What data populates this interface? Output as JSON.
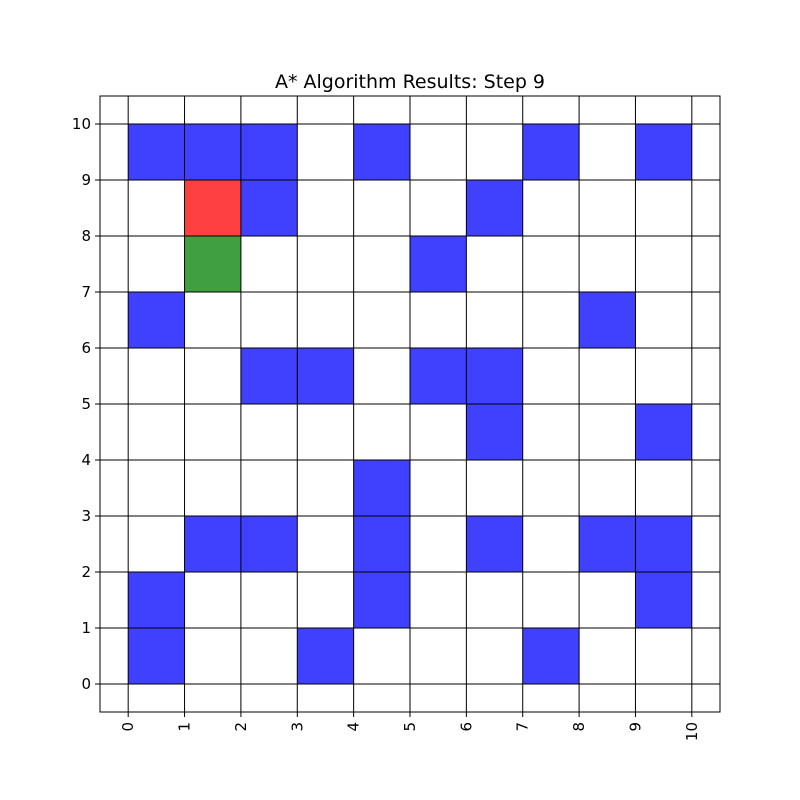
{
  "chart_data": {
    "type": "heatmap",
    "title": "A* Algorithm Results: Step 9",
    "xlim": [
      -0.5,
      10.5
    ],
    "ylim": [
      -0.5,
      10.5
    ],
    "x_ticks": [
      "0",
      "1",
      "2",
      "3",
      "4",
      "5",
      "6",
      "7",
      "8",
      "9",
      "10"
    ],
    "y_ticks": [
      "0",
      "1",
      "2",
      "3",
      "4",
      "5",
      "6",
      "7",
      "8",
      "9",
      "10"
    ],
    "grid": true,
    "cell_size": 1,
    "colors": {
      "obstacle": "#4040ff",
      "current": "#ff4040",
      "start": "#40a040",
      "grid": "#000000"
    },
    "cells": [
      {
        "x": 0,
        "y": 9,
        "state": "obstacle"
      },
      {
        "x": 1,
        "y": 9,
        "state": "obstacle"
      },
      {
        "x": 2,
        "y": 9,
        "state": "obstacle"
      },
      {
        "x": 4,
        "y": 9,
        "state": "obstacle"
      },
      {
        "x": 7,
        "y": 9,
        "state": "obstacle"
      },
      {
        "x": 9,
        "y": 9,
        "state": "obstacle"
      },
      {
        "x": 1,
        "y": 8,
        "state": "current"
      },
      {
        "x": 2,
        "y": 8,
        "state": "obstacle"
      },
      {
        "x": 6,
        "y": 8,
        "state": "obstacle"
      },
      {
        "x": 1,
        "y": 7,
        "state": "start"
      },
      {
        "x": 5,
        "y": 7,
        "state": "obstacle"
      },
      {
        "x": 0,
        "y": 6,
        "state": "obstacle"
      },
      {
        "x": 8,
        "y": 6,
        "state": "obstacle"
      },
      {
        "x": 2,
        "y": 5,
        "state": "obstacle"
      },
      {
        "x": 3,
        "y": 5,
        "state": "obstacle"
      },
      {
        "x": 5,
        "y": 5,
        "state": "obstacle"
      },
      {
        "x": 6,
        "y": 5,
        "state": "obstacle"
      },
      {
        "x": 6,
        "y": 4,
        "state": "obstacle"
      },
      {
        "x": 9,
        "y": 4,
        "state": "obstacle"
      },
      {
        "x": 4,
        "y": 3,
        "state": "obstacle"
      },
      {
        "x": 1,
        "y": 2,
        "state": "obstacle"
      },
      {
        "x": 2,
        "y": 2,
        "state": "obstacle"
      },
      {
        "x": 4,
        "y": 2,
        "state": "obstacle"
      },
      {
        "x": 6,
        "y": 2,
        "state": "obstacle"
      },
      {
        "x": 8,
        "y": 2,
        "state": "obstacle"
      },
      {
        "x": 9,
        "y": 2,
        "state": "obstacle"
      },
      {
        "x": 0,
        "y": 1,
        "state": "obstacle"
      },
      {
        "x": 4,
        "y": 1,
        "state": "obstacle"
      },
      {
        "x": 9,
        "y": 1,
        "state": "obstacle"
      },
      {
        "x": 0,
        "y": 0,
        "state": "obstacle"
      },
      {
        "x": 3,
        "y": 0,
        "state": "obstacle"
      },
      {
        "x": 7,
        "y": 0,
        "state": "obstacle"
      }
    ]
  }
}
